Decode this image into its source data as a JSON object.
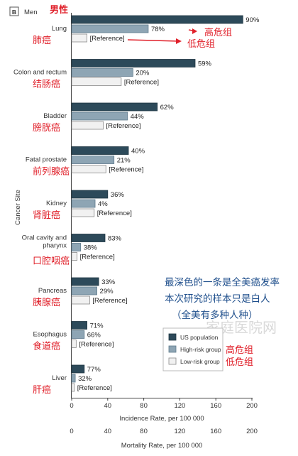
{
  "panel": {
    "badge": "B",
    "label": "Men",
    "cn_label": "男性"
  },
  "chart_data": {
    "type": "bar",
    "orientation": "horizontal",
    "ylabel": "Cancer Site",
    "xlabel": "Incidence Rate, per 100 000",
    "xlabel2": "Mortality Rate, per 100 000",
    "xlim": [
      0,
      200
    ],
    "xticks": [
      0,
      40,
      80,
      120,
      160,
      200
    ],
    "xlim2": [
      0,
      200
    ],
    "xticks2": [
      0,
      40,
      80,
      120,
      160,
      200
    ],
    "series": [
      {
        "name": "US population",
        "color": "#2d4a5a"
      },
      {
        "name": "High-risk group",
        "color": "#8ea5b4"
      },
      {
        "name": "Low-risk group",
        "color": "#f1f1f1"
      }
    ],
    "categories": [
      {
        "label": [
          "Lung"
        ],
        "cn": "肺癌",
        "values": [
          190,
          85,
          17
        ],
        "labels": [
          "90%",
          "78%",
          "[Reference]"
        ]
      },
      {
        "label": [
          "Colon and rectum"
        ],
        "cn": "结肠癌",
        "values": [
          137,
          68,
          55
        ],
        "labels": [
          "59%",
          "20%",
          "[Reference]"
        ]
      },
      {
        "label": [
          "Bladder"
        ],
        "cn": "膀胱癌",
        "values": [
          95,
          62,
          35
        ],
        "labels": [
          "62%",
          "44%",
          "[Reference]"
        ]
      },
      {
        "label": [
          "Fatal prostate"
        ],
        "cn": "前列腺癌",
        "values": [
          63,
          47,
          38
        ],
        "labels": [
          "40%",
          "21%",
          "[Reference]"
        ]
      },
      {
        "label": [
          "Kidney"
        ],
        "cn": "肾脏癌",
        "values": [
          40,
          26,
          25
        ],
        "labels": [
          "36%",
          "4%",
          "[Reference]"
        ]
      },
      {
        "label": [
          "Oral cavity and",
          "pharynx"
        ],
        "cn": "口腔咽癌",
        "values": [
          37,
          10,
          6
        ],
        "labels": [
          "83%",
          "38%",
          "[Reference]"
        ]
      },
      {
        "label": [
          "Pancreas"
        ],
        "cn": "胰腺癌",
        "values": [
          30,
          28,
          20
        ],
        "labels": [
          "33%",
          "29%",
          "[Reference]"
        ]
      },
      {
        "label": [
          "Esophagus"
        ],
        "cn": "食道癌",
        "values": [
          17,
          14,
          5
        ],
        "labels": [
          "71%",
          "66%",
          "[Reference]"
        ]
      },
      {
        "label": [
          "Liver"
        ],
        "cn": "肝癌",
        "values": [
          14,
          4,
          3
        ],
        "labels": [
          "77%",
          "32%",
          "[Reference]"
        ]
      }
    ]
  },
  "annotations": {
    "high_risk": "高危组",
    "low_risk": "低危组",
    "note_lines": [
      "最深色的一条是全美癌发率",
      "本次研究的样本只是白人",
      "（全美有多种人种）"
    ]
  },
  "watermark": "家庭医院网"
}
